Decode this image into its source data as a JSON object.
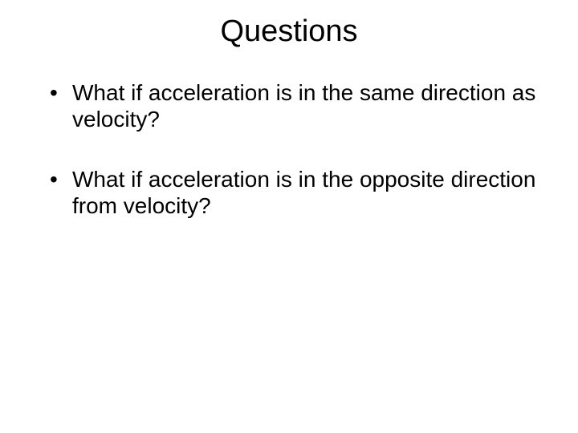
{
  "slide": {
    "title": "Questions",
    "bullets": [
      "What if acceleration is in the same direction as velocity?",
      "What if acceleration is in the opposite direction from velocity?"
    ],
    "styles": {
      "background_color": "#ffffff",
      "text_color": "#000000",
      "title_fontsize": 38,
      "bullet_fontsize": 28,
      "font_family": "Arial"
    }
  }
}
